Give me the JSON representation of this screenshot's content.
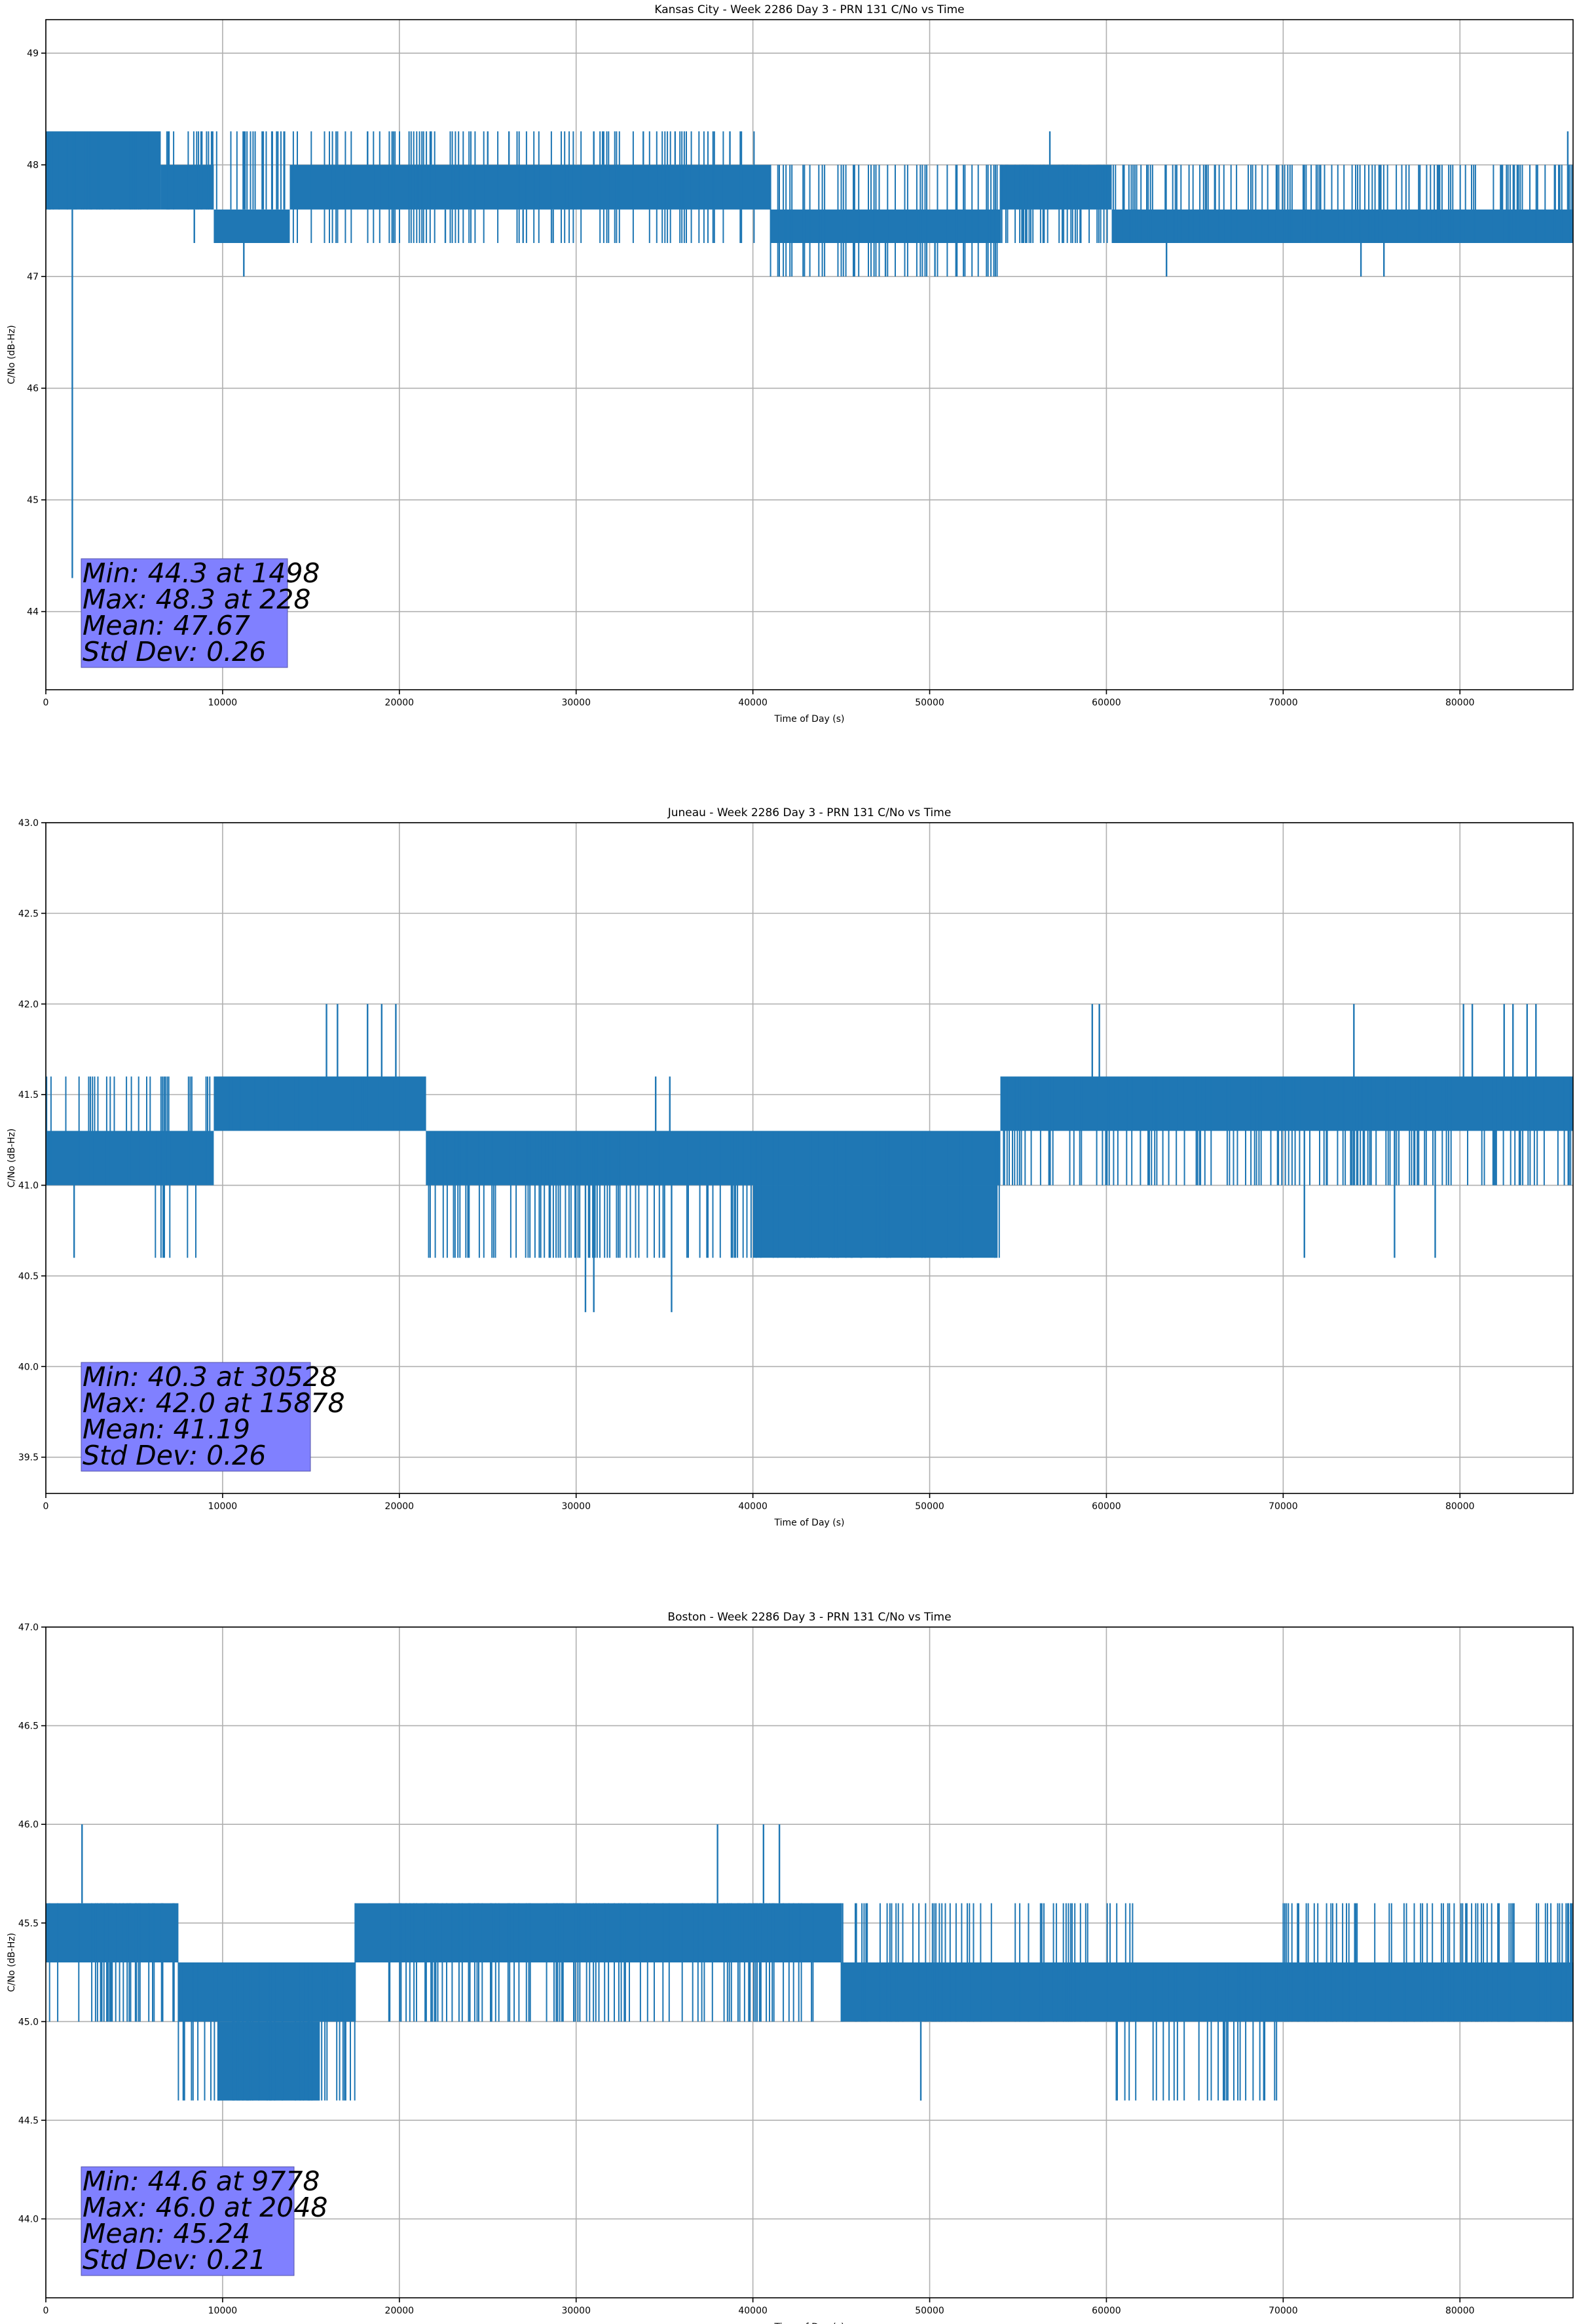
{
  "chart_data": [
    {
      "type": "line",
      "title": "Kansas City - Week 2286 Day 3 - PRN 131 C/No vs Time",
      "xlabel": "Time of Day (s)",
      "ylabel": "C/No (dB-Hz)",
      "xlim": [
        0,
        86400
      ],
      "ylim": [
        43.3,
        49.3
      ],
      "xticks": [
        0,
        10000,
        20000,
        30000,
        40000,
        50000,
        60000,
        70000,
        80000
      ],
      "yticks": [
        44,
        45,
        46,
        47,
        48,
        49
      ],
      "ytick_decimals": 0,
      "grid": true,
      "line_color": "#1f77b4",
      "stats_box_color": "#8080ff",
      "stats": [
        "Min: 44.3 at 1498",
        "Max: 48.3 at 228",
        "Mean: 47.67",
        "Std Dev: 0.26"
      ],
      "series": [
        {
          "levels": [
            47.3,
            47.6,
            48.0,
            48.3
          ],
          "segments": [
            {
              "x": [
                0,
                1500
              ],
              "band": [
                47.6,
                48.3
              ]
            },
            {
              "x": [
                1500,
                2000
              ],
              "band": [
                47.6,
                48.3
              ]
            },
            {
              "x": [
                2000,
                6500
              ],
              "band": [
                47.6,
                48.3
              ]
            },
            {
              "x": [
                6500,
                9500
              ],
              "band": [
                47.6,
                48.0
              ]
            },
            {
              "x": [
                9500,
                13800
              ],
              "band": [
                47.3,
                47.6
              ]
            },
            {
              "x": [
                13800,
                41000
              ],
              "band": [
                47.6,
                48.0
              ]
            },
            {
              "x": [
                41000,
                54000
              ],
              "band": [
                47.3,
                47.6
              ]
            },
            {
              "x": [
                54000,
                60300
              ],
              "band": [
                47.6,
                48.0
              ]
            },
            {
              "x": [
                60300,
                86400
              ],
              "band": [
                47.3,
                47.6
              ]
            }
          ],
          "spikes": [
            [
              1498,
              44.3
            ],
            [
              228,
              48.3
            ],
            [
              11200,
              47.0
            ],
            [
              47500,
              47.0
            ],
            [
              50300,
              47.0
            ],
            [
              63400,
              47.0
            ],
            [
              74400,
              47.0
            ],
            [
              75700,
              47.0
            ],
            [
              8400,
              47.3
            ],
            [
              22600,
              47.3
            ],
            [
              27000,
              47.3
            ],
            [
              28700,
              47.3
            ],
            [
              21800,
              48.3
            ],
            [
              18200,
              48.3
            ],
            [
              25000,
              48.3
            ],
            [
              26200,
              48.3
            ],
            [
              31500,
              48.3
            ],
            [
              33800,
              48.3
            ],
            [
              35600,
              48.3
            ],
            [
              56800,
              48.3
            ],
            [
              86100,
              48.3
            ],
            [
              38700,
              48.3
            ],
            [
              31000,
              48.3
            ]
          ],
          "flicker": [
            {
              "x": [
                0,
                13800
              ],
              "step": 80,
              "up": 48.3,
              "down": 47.6
            },
            {
              "x": [
                14000,
                41000
              ],
              "step": 120,
              "up": 48.3,
              "down": 47.3
            },
            {
              "x": [
                41000,
                54000
              ],
              "step": 110,
              "up": 48.0,
              "down": 47.0
            },
            {
              "x": [
                54000,
                86400
              ],
              "step": 90,
              "up": 48.0,
              "down": 47.3
            }
          ]
        }
      ]
    },
    {
      "type": "line",
      "title": "Juneau - Week 2286 Day 3 - PRN 131 C/No vs Time",
      "xlabel": "Time of Day (s)",
      "ylabel": "C/No (dB-Hz)",
      "xlim": [
        0,
        86400
      ],
      "ylim": [
        39.3,
        43.0
      ],
      "xticks": [
        0,
        10000,
        20000,
        30000,
        40000,
        50000,
        60000,
        70000,
        80000
      ],
      "yticks": [
        39.5,
        40.0,
        40.5,
        41.0,
        41.5,
        42.0,
        42.5,
        43.0
      ],
      "ytick_decimals": 1,
      "grid": true,
      "line_color": "#1f77b4",
      "stats_box_color": "#8080ff",
      "stats": [
        "Min: 40.3 at 30528",
        "Max: 42.0 at 15878",
        "Mean: 41.19",
        "Std Dev: 0.26"
      ],
      "series": [
        {
          "levels": [
            40.6,
            41.0,
            41.3,
            41.6,
            42.0
          ],
          "segments": [
            {
              "x": [
                0,
                9500
              ],
              "band": [
                41.0,
                41.3
              ]
            },
            {
              "x": [
                9500,
                21500
              ],
              "band": [
                41.3,
                41.6
              ]
            },
            {
              "x": [
                21500,
                54000
              ],
              "band": [
                41.0,
                41.3
              ]
            },
            {
              "x": [
                40000,
                53800
              ],
              "band": [
                40.6,
                41.0
              ]
            },
            {
              "x": [
                54000,
                86400
              ],
              "band": [
                41.3,
                41.6
              ]
            }
          ],
          "spikes": [
            [
              30528,
              40.3
            ],
            [
              31000,
              40.3
            ],
            [
              35400,
              40.3
            ],
            [
              15878,
              42.0
            ],
            [
              16500,
              42.0
            ],
            [
              18200,
              42.0
            ],
            [
              19000,
              42.0
            ],
            [
              19800,
              42.0
            ],
            [
              59200,
              42.0
            ],
            [
              59600,
              42.0
            ],
            [
              71200,
              40.6
            ],
            [
              74000,
              42.0
            ],
            [
              80200,
              42.0
            ],
            [
              80700,
              42.0
            ],
            [
              82500,
              42.0
            ],
            [
              83000,
              42.0
            ],
            [
              83800,
              42.0
            ],
            [
              84300,
              42.0
            ],
            [
              1600,
              40.6
            ],
            [
              34500,
              41.6
            ],
            [
              35300,
              41.6
            ],
            [
              76300,
              40.6
            ],
            [
              78600,
              40.6
            ]
          ],
          "flicker": [
            {
              "x": [
                0,
                9500
              ],
              "step": 90,
              "up": 41.6,
              "down": 41.0
            },
            {
              "x": [
                6200,
                8500
              ],
              "step": 70,
              "up": 41.3,
              "down": 40.6
            },
            {
              "x": [
                9500,
                21500
              ],
              "step": 110,
              "up": 41.6,
              "down": 41.3
            },
            {
              "x": [
                21500,
                40000
              ],
              "step": 90,
              "up": 41.3,
              "down": 40.6
            },
            {
              "x": [
                40000,
                54000
              ],
              "step": 100,
              "up": 41.3,
              "down": 40.6
            },
            {
              "x": [
                54000,
                86400
              ],
              "step": 90,
              "up": 41.6,
              "down": 41.0
            }
          ]
        }
      ]
    },
    {
      "type": "line",
      "title": "Boston - Week 2286 Day 3 - PRN 131 C/No vs Time",
      "xlabel": "Time of Day (s)",
      "ylabel": "C/No (dB-Hz)",
      "xlim": [
        0,
        86400
      ],
      "ylim": [
        43.6,
        47.0
      ],
      "xticks": [
        0,
        10000,
        20000,
        30000,
        40000,
        50000,
        60000,
        70000,
        80000
      ],
      "yticks": [
        44.0,
        44.5,
        45.0,
        45.5,
        46.0,
        46.5,
        47.0
      ],
      "ytick_decimals": 1,
      "grid": true,
      "line_color": "#1f77b4",
      "stats_box_color": "#8080ff",
      "stats": [
        "Min: 44.6 at 9778",
        "Max: 46.0 at 2048",
        "Mean: 45.24",
        "Std Dev: 0.21"
      ],
      "series": [
        {
          "levels": [
            44.6,
            45.0,
            45.3,
            45.6,
            46.0
          ],
          "segments": [
            {
              "x": [
                0,
                7500
              ],
              "band": [
                45.3,
                45.6
              ]
            },
            {
              "x": [
                7500,
                17500
              ],
              "band": [
                45.0,
                45.3
              ]
            },
            {
              "x": [
                9700,
                15500
              ],
              "band": [
                44.6,
                45.0
              ]
            },
            {
              "x": [
                17500,
                45000
              ],
              "band": [
                45.3,
                45.6
              ]
            },
            {
              "x": [
                45000,
                86400
              ],
              "band": [
                45.0,
                45.3
              ]
            }
          ],
          "spikes": [
            [
              9778,
              44.6
            ],
            [
              2048,
              46.0
            ],
            [
              38000,
              46.0
            ],
            [
              40600,
              46.0
            ],
            [
              41500,
              46.0
            ],
            [
              49500,
              44.6
            ],
            [
              86100,
              45.6
            ]
          ],
          "flicker": [
            {
              "x": [
                0,
                7500
              ],
              "step": 90,
              "up": 45.6,
              "down": 45.0
            },
            {
              "x": [
                7500,
                17500
              ],
              "step": 80,
              "up": 45.3,
              "down": 44.6
            },
            {
              "x": [
                17500,
                45000
              ],
              "step": 100,
              "up": 45.6,
              "down": 45.0
            },
            {
              "x": [
                45000,
                62000
              ],
              "step": 110,
              "up": 45.6,
              "down": 45.0
            },
            {
              "x": [
                60000,
                70000
              ],
              "step": 90,
              "up": 45.3,
              "down": 44.6
            },
            {
              "x": [
                70000,
                86400
              ],
              "step": 100,
              "up": 45.6,
              "down": 45.0
            }
          ]
        }
      ]
    }
  ]
}
